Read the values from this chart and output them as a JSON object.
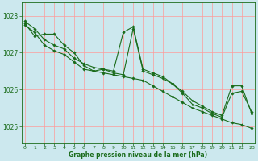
{
  "bg_color": "#cce8ee",
  "grid_color": "#ff9999",
  "line_color": "#1a6b1a",
  "marker_color": "#1a6b1a",
  "xlabel": "Graphe pression niveau de la mer (hPa)",
  "xlabel_color": "#1a6b1a",
  "yticks": [
    1025,
    1026,
    1027,
    1028
  ],
  "xlim": [
    -0.3,
    23.3
  ],
  "ylim": [
    1024.55,
    1028.35
  ],
  "series": [
    [
      1027.85,
      1027.65,
      1027.35,
      1027.2,
      1027.1,
      1026.85,
      1026.7,
      1026.6,
      1026.55,
      1026.45,
      1026.4,
      1027.65,
      1026.5,
      1026.4,
      1026.3,
      1026.15,
      1025.95,
      1025.7,
      1025.55,
      1025.4,
      1025.3,
      1026.1,
      1026.1,
      1025.35
    ],
    [
      1027.75,
      1027.55,
      1027.2,
      1027.05,
      1026.95,
      1026.75,
      1026.55,
      1026.5,
      1026.45,
      1026.4,
      1026.35,
      1026.3,
      1026.25,
      1026.1,
      1025.95,
      1025.8,
      1025.65,
      1025.5,
      1025.4,
      1025.3,
      1025.2,
      1025.1,
      1025.05,
      1024.95
    ],
    [
      1027.8,
      1027.45,
      1027.5,
      1027.5,
      1027.2,
      1027.0,
      1026.65,
      1026.5,
      1026.55,
      1026.5,
      1027.55,
      1027.7,
      1026.55,
      1026.45,
      1026.35,
      1026.15,
      1025.9,
      1025.6,
      1025.5,
      1025.35,
      1025.25,
      1025.9,
      1025.95,
      1025.4
    ]
  ],
  "xticks": [
    0,
    1,
    2,
    3,
    4,
    5,
    6,
    7,
    8,
    9,
    10,
    11,
    12,
    13,
    14,
    15,
    16,
    17,
    18,
    19,
    20,
    21,
    22,
    23
  ]
}
